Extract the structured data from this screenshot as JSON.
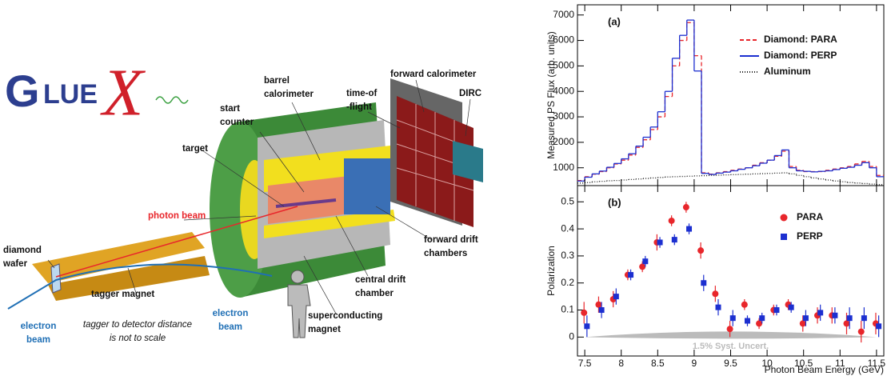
{
  "diagram": {
    "logo": {
      "g": "G",
      "lue": "LUE",
      "x": "X"
    },
    "labels": [
      {
        "lines": [
          "forward calorimeter"
        ]
      },
      {
        "lines": [
          "DIRC"
        ]
      },
      {
        "lines": [
          "time-of",
          "-flight"
        ]
      },
      {
        "lines": [
          "barrel",
          "calorimeter"
        ]
      },
      {
        "lines": [
          "start",
          "counter"
        ]
      },
      {
        "lines": [
          "target"
        ]
      },
      {
        "lines": [
          "photon beam"
        ]
      },
      {
        "lines": [
          "diamond",
          "wafer"
        ]
      },
      {
        "lines": [
          "forward drift",
          "chambers"
        ]
      },
      {
        "lines": [
          "central drift",
          "chamber"
        ]
      },
      {
        "lines": [
          "tagger magnet"
        ]
      },
      {
        "lines": [
          "electron",
          "beam"
        ]
      },
      {
        "lines": [
          "electron",
          "beam"
        ]
      },
      {
        "lines": [
          "superconducting",
          "magnet"
        ]
      },
      {
        "lines": [
          "tagger to detector distance",
          "is not to scale"
        ]
      }
    ]
  },
  "chart_data": [
    {
      "type": "histogram",
      "panel_label": "(a)",
      "ylabel": "Measured PS Flux (arb. units)",
      "bins": [
        7.4,
        7.5,
        7.6,
        7.7,
        7.8,
        7.9,
        8.0,
        8.1,
        8.2,
        8.3,
        8.4,
        8.5,
        8.6,
        8.7,
        8.8,
        8.9,
        9.0,
        9.1,
        9.2,
        9.3,
        9.4,
        9.5,
        9.6,
        9.7,
        9.8,
        9.9,
        10.0,
        10.1,
        10.2,
        10.3,
        10.4,
        10.5,
        10.6,
        10.7,
        10.8,
        10.9,
        11.0,
        11.1,
        11.2,
        11.3,
        11.4,
        11.5,
        11.6
      ],
      "xlim": [
        7.4,
        11.6
      ],
      "ylim": [
        300,
        7400
      ],
      "yticks": [
        1000,
        2000,
        3000,
        4000,
        5000,
        6000,
        7000
      ],
      "legend": "upper right",
      "series": [
        {
          "name": "Diamond: PARA",
          "color": "#e8262b",
          "linestyle": "dashed",
          "values": [
            500,
            650,
            750,
            850,
            1000,
            1150,
            1300,
            1500,
            1800,
            2100,
            2500,
            3000,
            3800,
            5000,
            6000,
            6700,
            5400,
            800,
            750,
            800,
            850,
            900,
            950,
            1000,
            1100,
            1200,
            1300,
            1450,
            1650,
            1050,
            900,
            850,
            850,
            850,
            900,
            950,
            1000,
            1050,
            1150,
            1250,
            1050,
            700
          ]
        },
        {
          "name": "Diamond: PERP",
          "color": "#1c2fd0",
          "linestyle": "solid",
          "values": [
            480,
            630,
            760,
            870,
            1020,
            1170,
            1350,
            1550,
            1850,
            2200,
            2600,
            3200,
            4000,
            5300,
            6200,
            6800,
            4800,
            780,
            740,
            790,
            830,
            880,
            940,
            1000,
            1080,
            1180,
            1300,
            1480,
            1700,
            1000,
            880,
            860,
            840,
            860,
            880,
            930,
            980,
            1020,
            1100,
            1200,
            1000,
            650
          ]
        },
        {
          "name": "Aluminum",
          "color": "#222222",
          "linestyle": "dotted",
          "values": [
            400,
            420,
            450,
            470,
            490,
            500,
            520,
            540,
            560,
            580,
            600,
            620,
            640,
            650,
            660,
            670,
            680,
            690,
            700,
            710,
            720,
            730,
            740,
            750,
            760,
            770,
            780,
            790,
            800,
            760,
            700,
            650,
            600,
            560,
            520,
            480,
            450,
            420,
            400,
            380,
            360,
            340
          ]
        }
      ]
    },
    {
      "type": "scatter",
      "panel_label": "(b)",
      "ylabel": "Polarization",
      "xlabel": "Photon Beam Energy (GeV)",
      "xlim": [
        7.4,
        11.6
      ],
      "xticks": [
        7.5,
        8,
        8.5,
        9,
        9.5,
        10,
        10.5,
        11,
        11.5
      ],
      "ylim": [
        -0.07,
        0.56
      ],
      "yticks": [
        0,
        0.1,
        0.2,
        0.3,
        0.4,
        0.5
      ],
      "legend": "upper right",
      "annotation": "1.5% Syst. Uncert.",
      "series": [
        {
          "name": "PARA",
          "color": "#e8262b",
          "marker": "circle",
          "x": [
            7.49,
            7.69,
            7.89,
            8.09,
            8.29,
            8.49,
            8.69,
            8.89,
            9.09,
            9.29,
            9.49,
            9.69,
            9.89,
            10.09,
            10.29,
            10.49,
            10.69,
            10.89,
            11.09,
            11.29,
            11.49
          ],
          "values": [
            0.09,
            0.12,
            0.14,
            0.23,
            0.26,
            0.35,
            0.43,
            0.48,
            0.32,
            0.16,
            0.03,
            0.12,
            0.05,
            0.1,
            0.12,
            0.05,
            0.08,
            0.08,
            0.05,
            0.02,
            0.05
          ],
          "errors": [
            0.04,
            0.03,
            0.03,
            0.02,
            0.02,
            0.03,
            0.02,
            0.02,
            0.03,
            0.03,
            0.03,
            0.02,
            0.02,
            0.02,
            0.02,
            0.03,
            0.03,
            0.03,
            0.04,
            0.04,
            0.04
          ]
        },
        {
          "name": "PERP",
          "color": "#1c2fd0",
          "marker": "square",
          "x": [
            7.53,
            7.73,
            7.93,
            8.13,
            8.33,
            8.53,
            8.73,
            8.93,
            9.13,
            9.33,
            9.53,
            9.73,
            9.93,
            10.13,
            10.33,
            10.53,
            10.73,
            10.93,
            11.13,
            11.33,
            11.53
          ],
          "values": [
            0.04,
            0.1,
            0.15,
            0.23,
            0.28,
            0.35,
            0.36,
            0.4,
            0.2,
            0.11,
            0.07,
            0.06,
            0.07,
            0.1,
            0.11,
            0.07,
            0.09,
            0.08,
            0.07,
            0.07,
            0.04
          ],
          "errors": [
            0.04,
            0.03,
            0.03,
            0.02,
            0.02,
            0.02,
            0.02,
            0.02,
            0.03,
            0.03,
            0.03,
            0.02,
            0.02,
            0.02,
            0.02,
            0.03,
            0.03,
            0.03,
            0.04,
            0.04,
            0.04
          ]
        }
      ]
    }
  ]
}
